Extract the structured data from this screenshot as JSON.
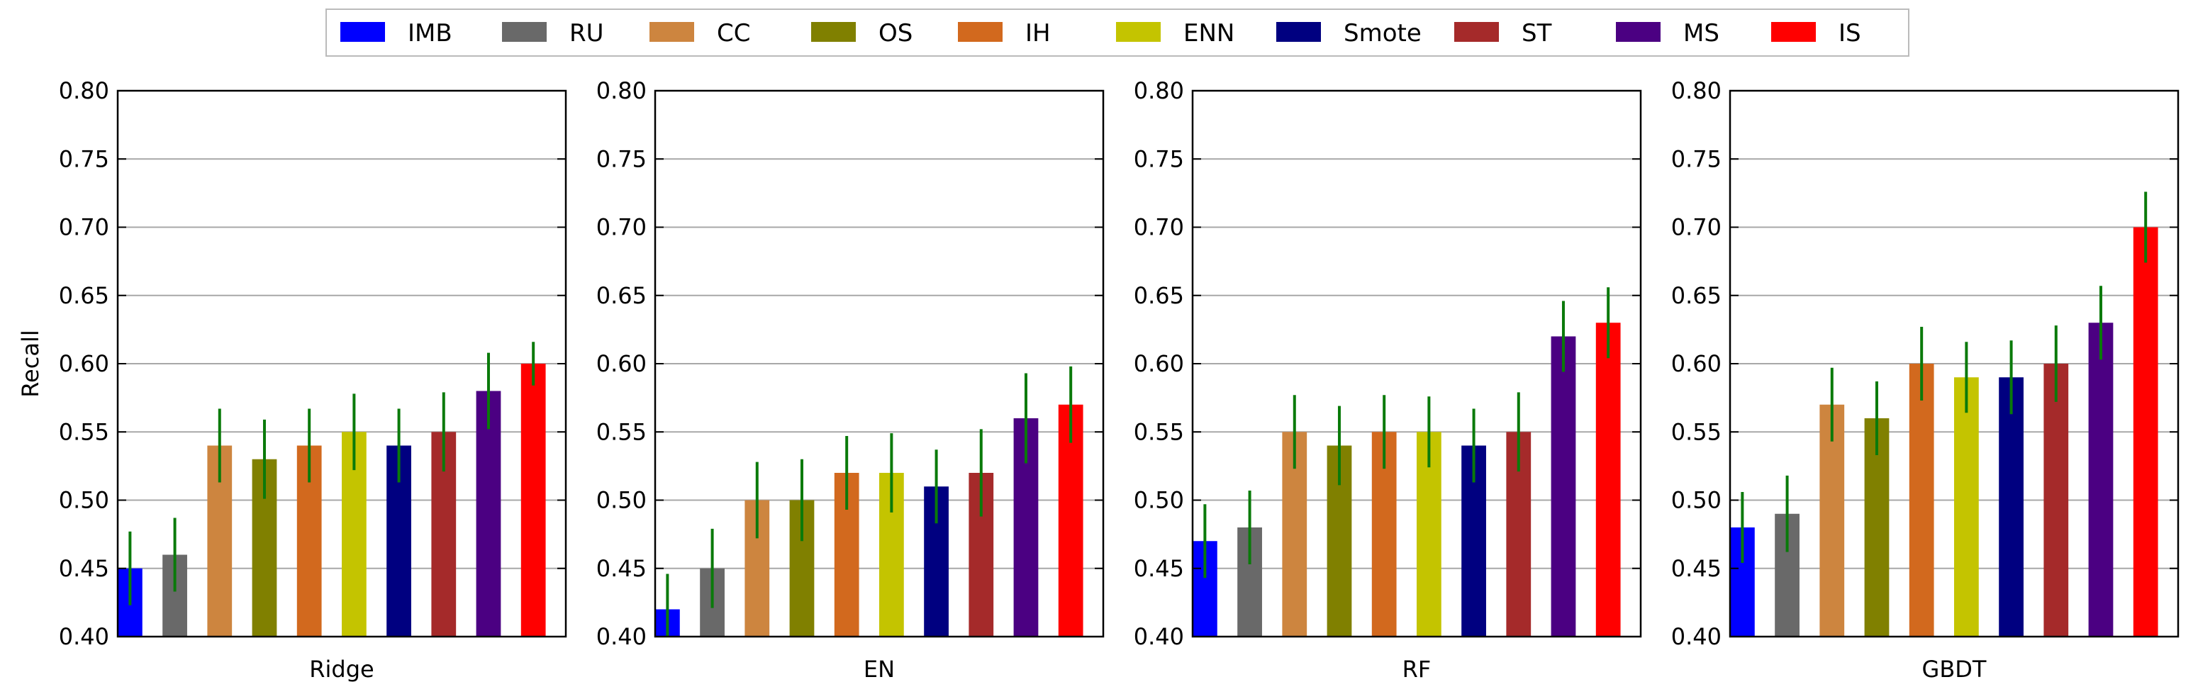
{
  "chart_data": {
    "type": "bar",
    "ylabel": "Recall",
    "ylim": [
      0.4,
      0.8
    ],
    "yticks": [
      0.4,
      0.45,
      0.5,
      0.55,
      0.6,
      0.65,
      0.7,
      0.75,
      0.8
    ],
    "grid": "horizontal",
    "legend_position": "top-center",
    "error_bar_color": "#0a7a0a",
    "series": [
      {
        "name": "IMB",
        "color": "#0000ff"
      },
      {
        "name": "RU",
        "color": "#696969"
      },
      {
        "name": "CC",
        "color": "#cd853f"
      },
      {
        "name": "OS",
        "color": "#808000"
      },
      {
        "name": "IH",
        "color": "#d2691e"
      },
      {
        "name": "ENN",
        "color": "#c4c400"
      },
      {
        "name": "Smote",
        "color": "#000080"
      },
      {
        "name": "ST",
        "color": "#a52a2a"
      },
      {
        "name": "MS",
        "color": "#4b0082"
      },
      {
        "name": "IS",
        "color": "#ff0000"
      }
    ],
    "panels": [
      {
        "xlabel": "Ridge",
        "values": [
          0.45,
          0.46,
          0.54,
          0.53,
          0.54,
          0.55,
          0.54,
          0.55,
          0.58,
          0.6
        ],
        "errors": [
          0.027,
          0.027,
          0.027,
          0.029,
          0.027,
          0.028,
          0.027,
          0.029,
          0.028,
          0.016
        ]
      },
      {
        "xlabel": "EN",
        "values": [
          0.42,
          0.45,
          0.5,
          0.5,
          0.52,
          0.52,
          0.51,
          0.52,
          0.56,
          0.57
        ],
        "errors": [
          0.026,
          0.029,
          0.028,
          0.03,
          0.027,
          0.029,
          0.027,
          0.032,
          0.033,
          0.028
        ]
      },
      {
        "xlabel": "RF",
        "values": [
          0.47,
          0.48,
          0.55,
          0.54,
          0.55,
          0.55,
          0.54,
          0.55,
          0.62,
          0.63
        ],
        "errors": [
          0.027,
          0.027,
          0.027,
          0.029,
          0.027,
          0.026,
          0.027,
          0.029,
          0.026,
          0.026
        ]
      },
      {
        "xlabel": "GBDT",
        "values": [
          0.48,
          0.49,
          0.57,
          0.56,
          0.6,
          0.59,
          0.59,
          0.6,
          0.63,
          0.7
        ],
        "errors": [
          0.026,
          0.028,
          0.027,
          0.027,
          0.027,
          0.026,
          0.027,
          0.028,
          0.027,
          0.026
        ]
      }
    ]
  }
}
